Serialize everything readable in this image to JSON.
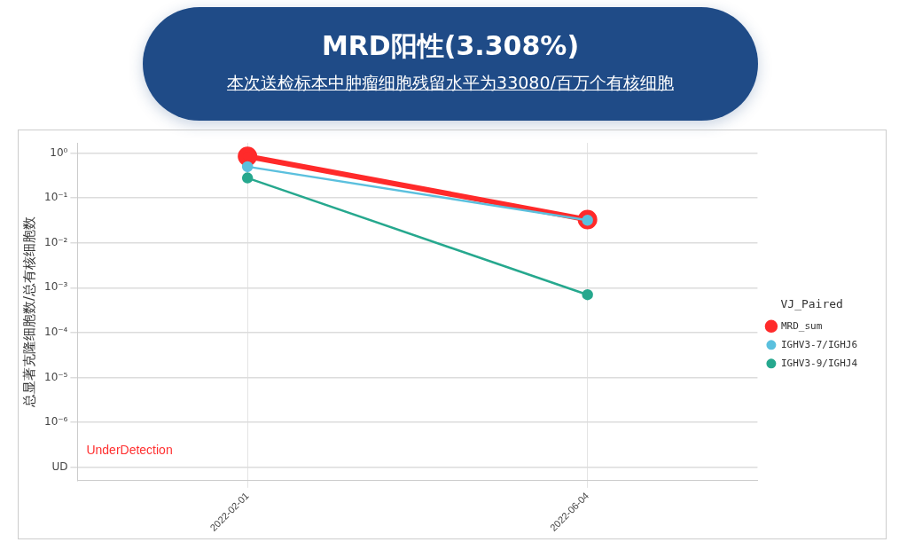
{
  "chart_data": {
    "type": "line",
    "title": "MRD阳性(3.308%)",
    "subtitle": "本次送检标本中肿瘤细胞残留水平为33080/百万个有核细胞",
    "ylabel": "总显著克隆细胞数/总有核细胞数",
    "legend_title": "VJ_Paired",
    "categories": [
      "2022-02-01",
      "2022-06-04"
    ],
    "series": [
      {
        "name": "MRD_sum",
        "color": "#ff2a2a",
        "values": [
          0.85,
          0.033
        ]
      },
      {
        "name": "IGHV3-7/IGHJ6",
        "color": "#5bc0de",
        "values": [
          0.5,
          0.032
        ]
      },
      {
        "name": "IGHV3-9/IGHJ4",
        "color": "#26a88e",
        "values": [
          0.28,
          0.0007
        ]
      }
    ],
    "log": "y",
    "ylim": [
      5e-08,
      1.7
    ],
    "yticks": [
      {
        "value": 1,
        "label": "10⁰"
      },
      {
        "value": 0.1,
        "label": "10⁻¹"
      },
      {
        "value": 0.01,
        "label": "10⁻²"
      },
      {
        "value": 0.001,
        "label": "10⁻³"
      },
      {
        "value": 0.0001,
        "label": "10⁻⁴"
      },
      {
        "value": 1e-05,
        "label": "10⁻⁵"
      },
      {
        "value": 1e-06,
        "label": "10⁻⁶"
      },
      {
        "value": 1e-07,
        "label": "UD"
      }
    ],
    "annotations": [
      "UnderDetection"
    ],
    "grid": true,
    "legend": "right",
    "marker": "circle",
    "line_style": "solid"
  }
}
